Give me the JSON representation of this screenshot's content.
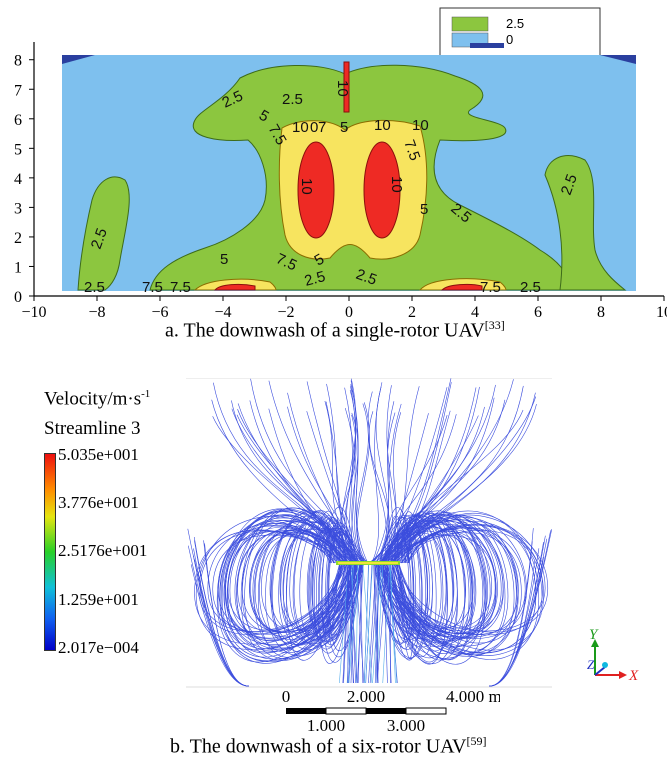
{
  "panel_a": {
    "caption": "a. The downwash of a single-rotor UAV",
    "caption_ref": "[33]",
    "legend": [
      {
        "label": "2.5",
        "color": "#8cc63f"
      },
      {
        "label": "0",
        "color": "#7ec0ee"
      }
    ],
    "x_ticks": [
      "−10",
      "−8",
      "−6",
      "−4",
      "−2",
      "0",
      "2",
      "4",
      "6",
      "8",
      "10"
    ],
    "y_ticks": [
      "0",
      "1",
      "2",
      "3",
      "4",
      "5",
      "6",
      "7",
      "8"
    ],
    "contour_labels": [
      "2.5",
      "2.5",
      "10",
      "5",
      "7.5",
      "10",
      "0",
      "7",
      "5",
      "10",
      "10",
      "7.5",
      "10",
      "10",
      "5",
      "2.5",
      "2.5",
      "2.5",
      "5",
      "7.5",
      "5",
      "2.5",
      "2.5",
      "7.5",
      "7.5",
      "2.5",
      "7.5",
      "2.5"
    ]
  },
  "panel_b": {
    "caption": "b. The downwash of a six-rotor UAV",
    "caption_ref": "[59]",
    "legend_title_1": "Velocity/m·s",
    "legend_title_1_sup": "-1",
    "legend_title_2": "Streamline 3",
    "colorbar_labels": [
      "5.035e+001",
      "3.776e+001",
      "2.5176e+001",
      "1.259e+001",
      "2.017e−004"
    ],
    "scale_top": [
      "0",
      "2.000",
      "4.000 m"
    ],
    "scale_bottom": [
      "1.000",
      "3.000"
    ],
    "axes": {
      "y": "Y",
      "z": "Z",
      "x": "X"
    }
  },
  "chart_data": [
    {
      "type": "heatmap",
      "title": "",
      "xlabel": "",
      "ylabel": "",
      "xlim": [
        -10,
        10
      ],
      "ylim": [
        0,
        8.6
      ],
      "x_ticks": [
        -10,
        -8,
        -6,
        -4,
        -2,
        0,
        2,
        4,
        6,
        8,
        10
      ],
      "y_ticks": [
        0,
        1,
        2,
        3,
        4,
        5,
        6,
        7,
        8
      ],
      "contour_levels": [
        0,
        2.5,
        5,
        7.5,
        10
      ],
      "level_colors": {
        "0": "#7ec0ee",
        "2.5": "#8cc63f",
        "5": "#f7e45f",
        "7.5": "#f7e45f",
        "10": "#ee2a24"
      },
      "legend": [
        "2.5",
        "0"
      ],
      "legend_placement": "top-right"
    },
    {
      "type": "other",
      "title": "",
      "colorbar_range": [
        0.0002017,
        50.35
      ],
      "colorbar_ticks": [
        50.35,
        37.76,
        25.176,
        12.59,
        0.0002017
      ],
      "scale_bar_m": [
        0,
        1,
        2,
        3,
        4
      ]
    }
  ]
}
